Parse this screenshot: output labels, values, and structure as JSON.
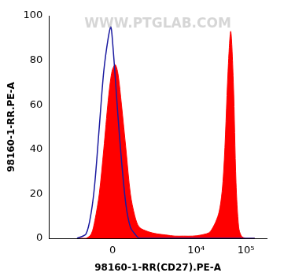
{
  "chart_data": {
    "type": "histogram",
    "annotation": "WWW.PTGLAB.COM",
    "x_label": "98160-1-RR(CD27).PE-A",
    "y_label": "98160-1-RR.PE-A",
    "log": "x",
    "grid": false,
    "x": [
      -1050,
      -660,
      -486,
      -387,
      -277,
      -178,
      -87,
      -35,
      0,
      52,
      105,
      178,
      277,
      387,
      514,
      662,
      1047,
      1617,
      2460,
      3726,
      5625,
      8480,
      12790,
      19290,
      29100,
      35800,
      43900,
      49700,
      56100,
      63500,
      71800,
      81400,
      100000,
      122400,
      150600
    ],
    "series": [
      {
        "type": "area",
        "color": "#ff0000",
        "values": [
          0,
          0,
          2,
          8,
          20,
          40,
          62,
          72,
          76,
          78,
          74,
          60,
          40,
          20,
          10,
          5,
          3,
          2,
          1.5,
          1,
          1,
          1,
          1.5,
          3,
          12,
          30,
          75,
          93,
          70,
          25,
          5,
          1,
          0,
          0,
          0
        ]
      },
      {
        "type": "line",
        "color": "#1a1aa0",
        "values": [
          0,
          2,
          12,
          25,
          50,
          75,
          90,
          95,
          88,
          72,
          55,
          35,
          15,
          5,
          2,
          0,
          0,
          0,
          0,
          0,
          0,
          0,
          0,
          0,
          0,
          0,
          0,
          0,
          0,
          0,
          0,
          0,
          0,
          0,
          0
        ]
      }
    ],
    "xlim": [
      -4000,
      262144
    ],
    "xticks": [
      0,
      {
        "value": 10000,
        "label": "10⁴"
      },
      {
        "value": 100000,
        "label": "10⁵"
      }
    ],
    "ylim": [
      0,
      100
    ],
    "yticks": [
      0,
      20,
      40,
      60,
      80,
      100
    ]
  }
}
